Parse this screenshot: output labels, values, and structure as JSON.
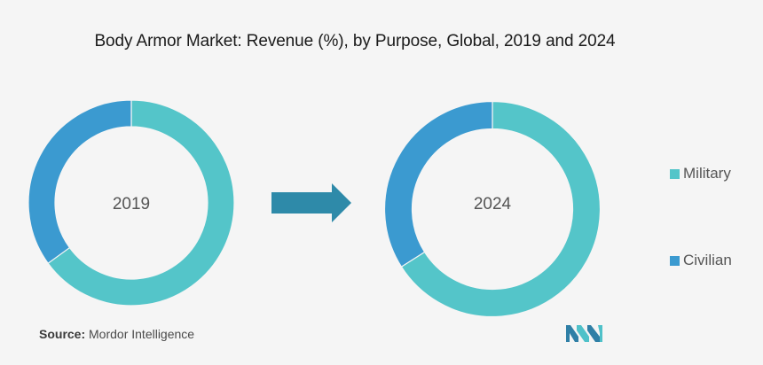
{
  "title": "Body Armor Market: Revenue (%), by Purpose, Global, 2019 and 2024",
  "source_label": "Source:",
  "source_text": "Mordor Intelligence",
  "colors": {
    "military": "#54c5c9",
    "civilian": "#3b9ad0",
    "arrow": "#2e8aa9",
    "background": "#f5f5f5"
  },
  "legend": [
    {
      "label": "Military",
      "color": "#54c5c9"
    },
    {
      "label": "Civilian",
      "color": "#3b9ad0"
    }
  ],
  "chart_data": [
    {
      "type": "pie",
      "style": "donut",
      "center_label": "2019",
      "categories": [
        "Military",
        "Civilian"
      ],
      "values": [
        65,
        35
      ]
    },
    {
      "type": "pie",
      "style": "donut",
      "center_label": "2024",
      "categories": [
        "Military",
        "Civilian"
      ],
      "values": [
        66,
        34
      ]
    }
  ]
}
